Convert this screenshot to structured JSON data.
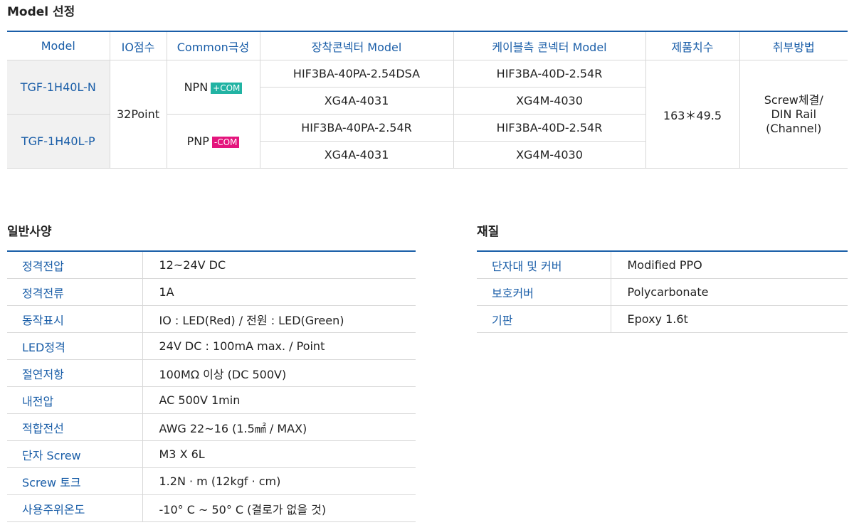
{
  "model_section": {
    "title": "Model 선정",
    "headers": [
      "Model",
      "IO점수",
      "Common극성",
      "장착콘넥터 Model",
      "케이블측 콘넥터 Model",
      "제품치수",
      "취부방법"
    ],
    "models": [
      "TGF-1H40L-N",
      "TGF-1H40L-P"
    ],
    "io_points": "32Point",
    "polarity": [
      {
        "label": "NPN",
        "badge": "+COM",
        "badge_color": "#21b3a3"
      },
      {
        "label": "PNP",
        "badge": "-COM",
        "badge_color": "#e4157d"
      }
    ],
    "connectors": [
      {
        "mount": "HIF3BA-40PA-2.54DSA",
        "cable": "HIF3BA-40D-2.54R"
      },
      {
        "mount": "XG4A-4031",
        "cable": "XG4M-4030"
      },
      {
        "mount": "HIF3BA-40PA-2.54R",
        "cable": "HIF3BA-40D-2.54R"
      },
      {
        "mount": "XG4A-4031",
        "cable": "XG4M-4030"
      }
    ],
    "dimension": "163＊49.5",
    "mounting": [
      "Screw체결/",
      "DIN Rail",
      "(Channel)"
    ]
  },
  "general_specs": {
    "title": "일반사양",
    "rows": [
      {
        "k": "정격전압",
        "v": "12~24V DC"
      },
      {
        "k": "정격전류",
        "v": "1A"
      },
      {
        "k": "동작표시",
        "v": "IO : LED(Red) / 전원 : LED(Green)"
      },
      {
        "k": "LED정격",
        "v": "24V DC : 100mA max. / Point"
      },
      {
        "k": "절연저항",
        "v": "100MΩ  이상 (DC 500V)"
      },
      {
        "k": "내전압",
        "v": "AC 500V 1min"
      },
      {
        "k": "적합전선",
        "v": "AWG 22~16 (1.5㎟ / MAX)"
      },
      {
        "k": "단자 Screw",
        "v": "M3 X 6L"
      },
      {
        "k": "Screw 토크",
        "v": "1.2N · m (12kgf · cm)"
      },
      {
        "k": "사용주위온도",
        "v": "-10° C ~ 50° C (결로가 없을 것)"
      }
    ]
  },
  "material": {
    "title": "재질",
    "rows": [
      {
        "k": "단자대 및 커버",
        "v": "Modified PPO"
      },
      {
        "k": "보호커버",
        "v": "Polycarbonate"
      },
      {
        "k": "기판",
        "v": "Epoxy 1.6t"
      }
    ]
  }
}
